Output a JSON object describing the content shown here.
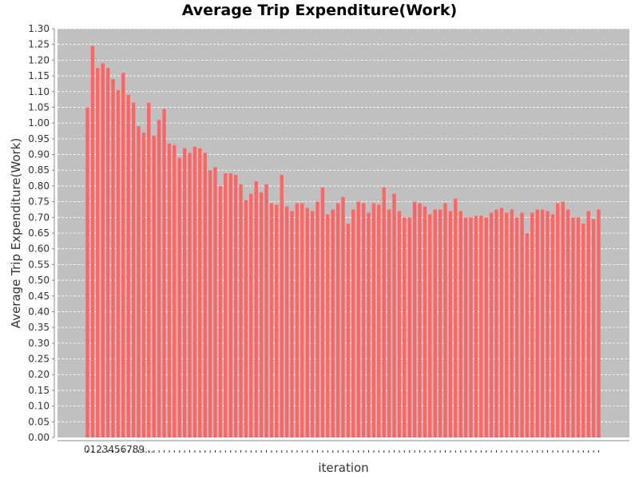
{
  "chart_data": {
    "type": "bar",
    "title": "Average Trip Expenditure(Work)",
    "xlabel": "iteration",
    "ylabel": "Average Trip Expenditure(Work)",
    "ylim": [
      0,
      1.3
    ],
    "yticks": [
      "0.00",
      "0.05",
      "0.10",
      "0.15",
      "0.20",
      "0.25",
      "0.30",
      "0.35",
      "0.40",
      "0.45",
      "0.50",
      "0.55",
      "0.60",
      "0.65",
      "0.70",
      "0.75",
      "0.80",
      "0.85",
      "0.90",
      "0.95",
      "1.00",
      "1.05",
      "1.10",
      "1.15",
      "1.20",
      "1.25",
      "1.30"
    ],
    "x_tick_labels_shown": [
      "0",
      "1",
      "2",
      "3",
      "4",
      "5",
      "6",
      "7",
      "8",
      "9..."
    ],
    "grid": true,
    "colors": {
      "bar": "#ff6666",
      "plot_background": "#c0c0c0",
      "grid": "#ffffff"
    },
    "values": [
      1.05,
      1.245,
      1.175,
      1.19,
      1.175,
      1.14,
      1.105,
      1.16,
      1.09,
      1.065,
      0.99,
      0.97,
      1.065,
      0.96,
      1.01,
      1.045,
      0.935,
      0.93,
      0.89,
      0.92,
      0.905,
      0.925,
      0.92,
      0.905,
      0.85,
      0.86,
      0.8,
      0.84,
      0.84,
      0.835,
      0.805,
      0.755,
      0.775,
      0.815,
      0.78,
      0.805,
      0.745,
      0.74,
      0.835,
      0.735,
      0.72,
      0.745,
      0.745,
      0.73,
      0.72,
      0.75,
      0.795,
      0.71,
      0.725,
      0.745,
      0.765,
      0.68,
      0.725,
      0.75,
      0.745,
      0.715,
      0.745,
      0.74,
      0.795,
      0.725,
      0.775,
      0.72,
      0.7,
      0.7,
      0.75,
      0.745,
      0.735,
      0.71,
      0.725,
      0.725,
      0.745,
      0.72,
      0.76,
      0.72,
      0.7,
      0.7,
      0.705,
      0.705,
      0.7,
      0.715,
      0.725,
      0.73,
      0.715,
      0.725,
      0.7,
      0.715,
      0.65,
      0.715,
      0.725,
      0.725,
      0.72,
      0.71,
      0.745,
      0.75,
      0.725,
      0.7,
      0.7,
      0.68,
      0.72,
      0.695,
      0.725
    ]
  }
}
